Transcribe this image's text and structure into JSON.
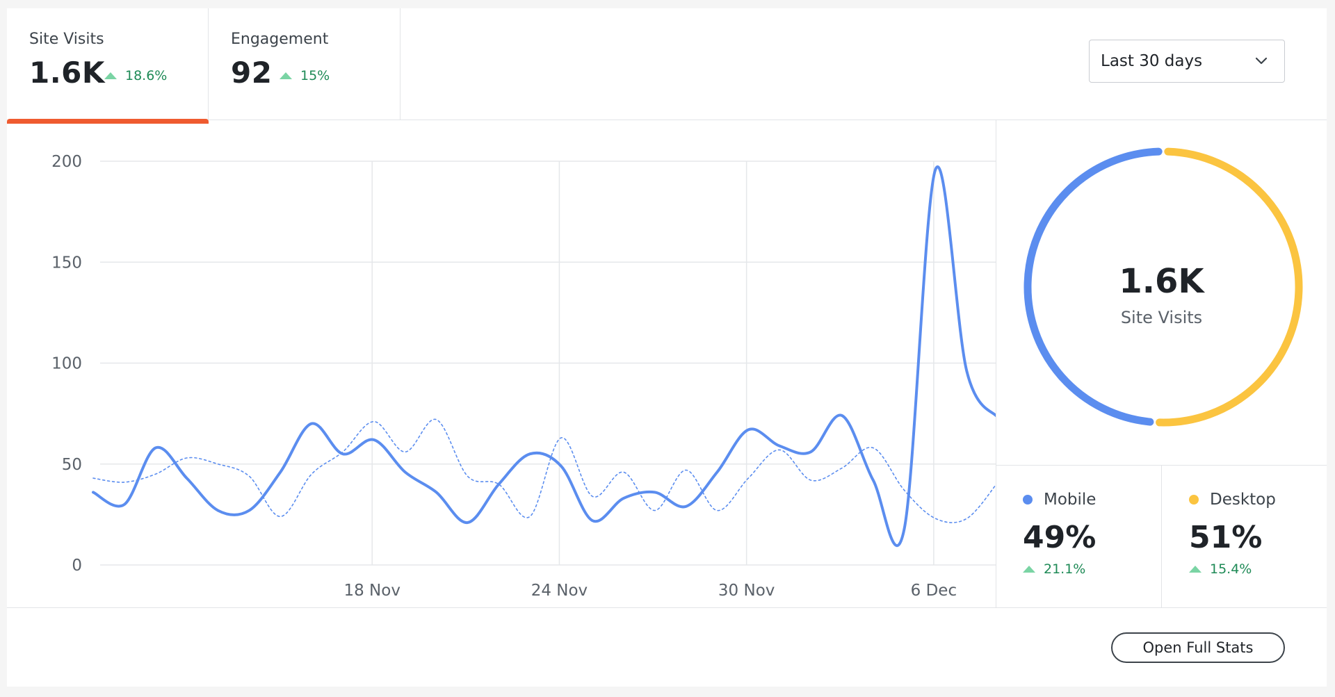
{
  "tabs": [
    {
      "label": "Site Visits",
      "value": "1.6K",
      "delta": "18.6%"
    },
    {
      "label": "Engagement",
      "value": "92",
      "delta": "15%"
    }
  ],
  "range_select": {
    "value": "Last 30 days",
    "icon": "chevron-down-icon"
  },
  "colors": {
    "accent": "#ef5b30",
    "mobile": "#5b8def",
    "desktop": "#fbc440",
    "positive": "#1e8a56",
    "positive_marker": "#7ad4a4",
    "grid": "#e5e7ea"
  },
  "chart_data": {
    "type": "line",
    "x_tick_labels": [
      "18 Nov",
      "24 Nov",
      "30 Nov",
      "6 Dec"
    ],
    "y_ticks": [
      0,
      50,
      100,
      150,
      200
    ],
    "ylim": [
      0,
      200
    ],
    "grid": true,
    "series": [
      {
        "style": "solid",
        "values": [
          36,
          30,
          58,
          43,
          27,
          27,
          46,
          70,
          55,
          62,
          46,
          36,
          21,
          40,
          55,
          49,
          22,
          33,
          36,
          29,
          46,
          67,
          59,
          56,
          74,
          42,
          18,
          196,
          96,
          73
        ]
      },
      {
        "style": "dotted",
        "values": [
          43,
          41,
          45,
          53,
          50,
          44,
          24,
          45,
          56,
          71,
          56,
          72,
          44,
          40,
          24,
          63,
          34,
          46,
          27,
          47,
          27,
          43,
          57,
          42,
          48,
          58,
          37,
          23,
          23,
          41
        ]
      }
    ]
  },
  "donut": {
    "value": "1.6K",
    "label": "Site Visits",
    "segments": [
      {
        "name": "Mobile",
        "fraction": 0.49
      },
      {
        "name": "Desktop",
        "fraction": 0.51
      }
    ]
  },
  "breakdown": [
    {
      "label": "Mobile",
      "value": "49%",
      "delta": "21.1%"
    },
    {
      "label": "Desktop",
      "value": "51%",
      "delta": "15.4%"
    }
  ],
  "footer": {
    "button_label": "Open Full Stats"
  }
}
